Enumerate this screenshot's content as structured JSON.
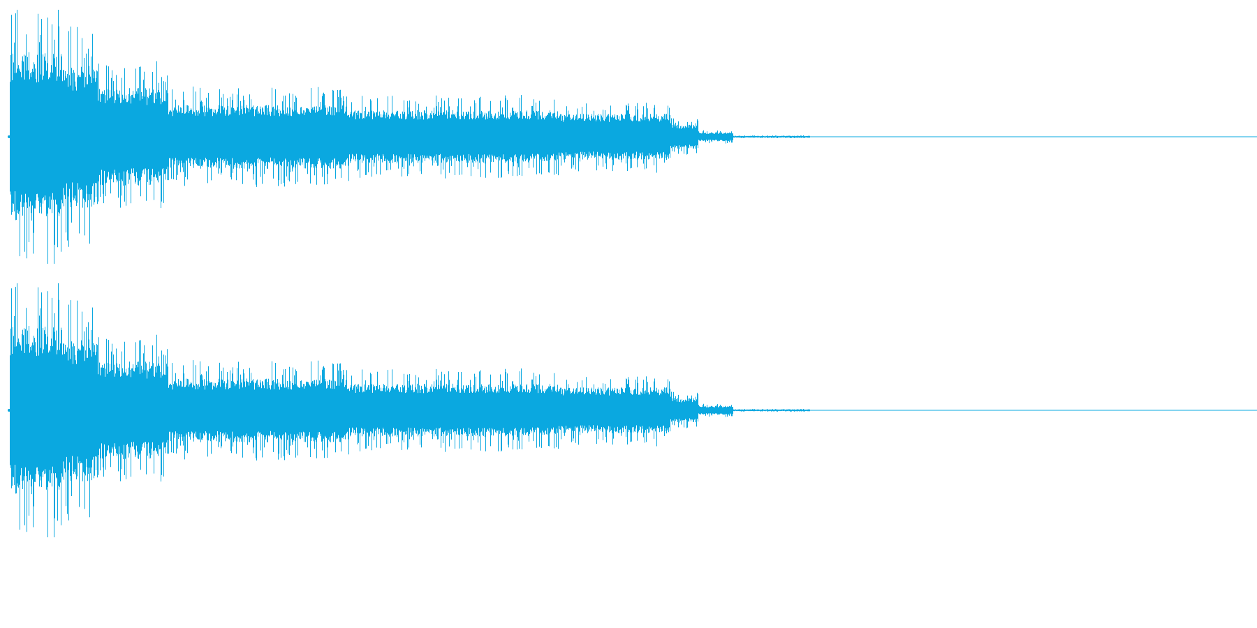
{
  "waveform": {
    "color": "#0aa8e0",
    "channels": [
      {
        "name": ""
      },
      {
        "name": ""
      }
    ]
  }
}
